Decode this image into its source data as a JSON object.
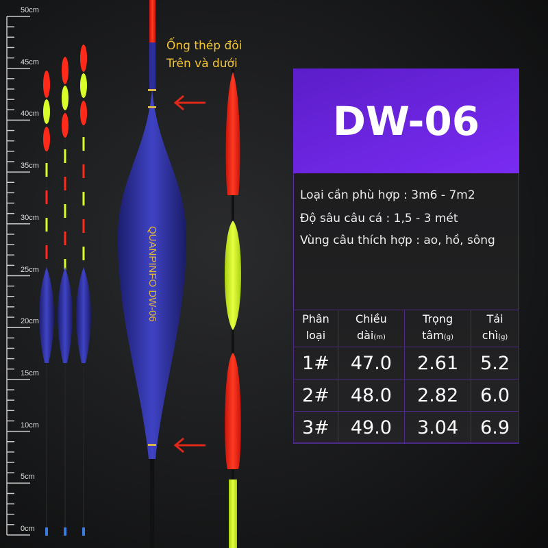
{
  "ruler": {
    "labels": [
      "50cm",
      "45cm",
      "40cm",
      "35cm",
      "30cm",
      "25cm",
      "20cm",
      "15cm",
      "10cm",
      "5cm",
      "0cm"
    ]
  },
  "note": {
    "line1": "Ống thép đôi",
    "line2": "Trên và dưới"
  },
  "product": {
    "model": "DW-06",
    "body_lettering": "QUANPINFO DW-06",
    "colors": {
      "tip_red": "#ff2a1a",
      "tip_yellow": "#d8ff2a",
      "body_blue": "#2d2f9c",
      "accent_purple": "#6a24e0"
    }
  },
  "info": {
    "line1": "Loại cần phù hợp : 3m6 - 7m2",
    "line2": "Độ sâu câu cá : 1,5 - 3 mét",
    "line3": "Vùng câu thích hợp : ao, hồ, sông"
  },
  "table": {
    "headers": [
      {
        "a": "Phân",
        "b": "loại",
        "u": ""
      },
      {
        "a": "Chiều",
        "b": "dài",
        "u": "(m)"
      },
      {
        "a": "Trọng",
        "b": "tâm",
        "u": "(g)"
      },
      {
        "a": "Tải",
        "b": "chì",
        "u": "(g)"
      }
    ],
    "rows": [
      [
        "1#",
        "47.0",
        "2.61",
        "5.2"
      ],
      [
        "2#",
        "48.0",
        "2.82",
        "6.0"
      ],
      [
        "3#",
        "49.0",
        "3.04",
        "6.9"
      ]
    ]
  }
}
